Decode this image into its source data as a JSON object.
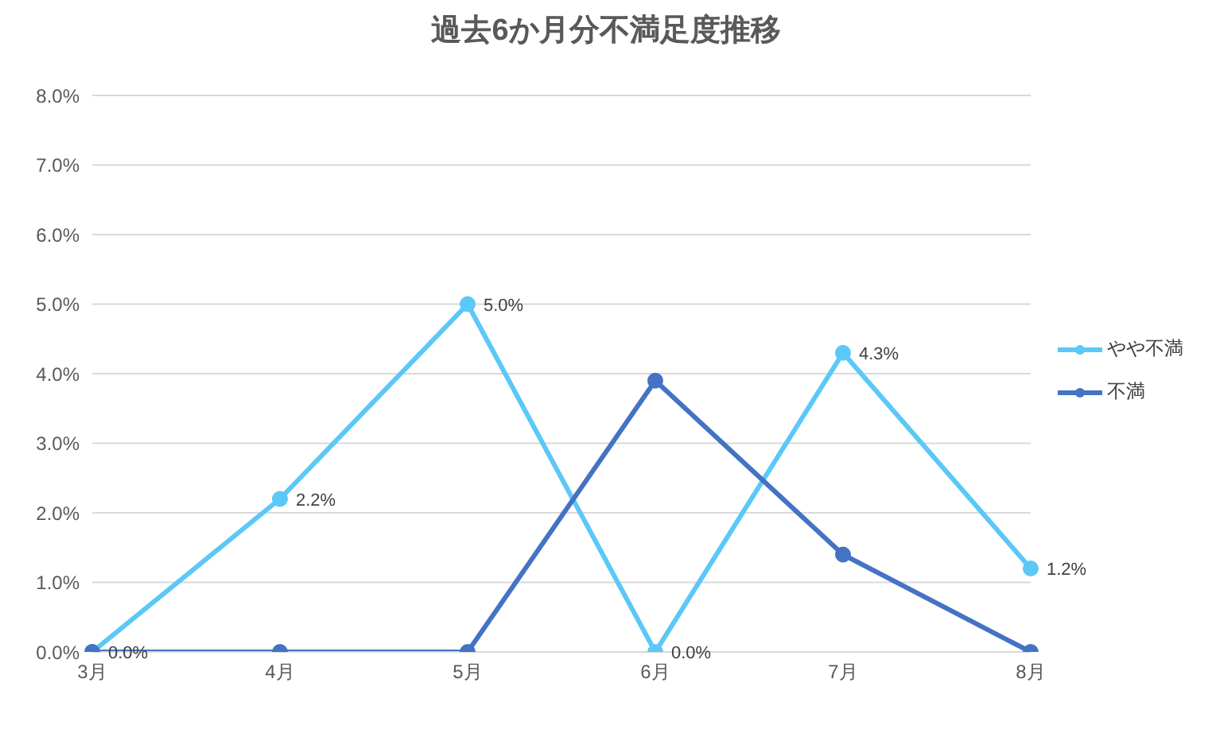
{
  "chart_data": {
    "type": "line",
    "title": "過去6か月分不満足度推移",
    "categories": [
      "3月",
      "4月",
      "5月",
      "6月",
      "7月",
      "8月"
    ],
    "series": [
      {
        "name": "やや不満",
        "color": "#5bc8f7",
        "values": [
          0.0,
          2.2,
          5.0,
          0.0,
          4.3,
          1.2
        ],
        "value_labels": [
          "0.0%",
          "2.2%",
          "5.0%",
          "0.0%",
          "4.3%",
          "1.2%"
        ]
      },
      {
        "name": "不満",
        "color": "#4472c4",
        "values": [
          0.0,
          0.0,
          0.0,
          3.9,
          1.4,
          0.0
        ]
      }
    ],
    "ylim": [
      0,
      8
    ],
    "yticks": [
      {
        "value": 0,
        "label": "0.0%"
      },
      {
        "value": 1,
        "label": "1.0%"
      },
      {
        "value": 2,
        "label": "2.0%"
      },
      {
        "value": 3,
        "label": "3.0%"
      },
      {
        "value": 4,
        "label": "4.0%"
      },
      {
        "value": 5,
        "label": "5.0%"
      },
      {
        "value": 6,
        "label": "6.0%"
      },
      {
        "value": 7,
        "label": "7.0%"
      },
      {
        "value": 8,
        "label": "8.0%"
      }
    ],
    "grid": "y",
    "legend": "right",
    "marker": "circle",
    "line_style": "solid"
  }
}
